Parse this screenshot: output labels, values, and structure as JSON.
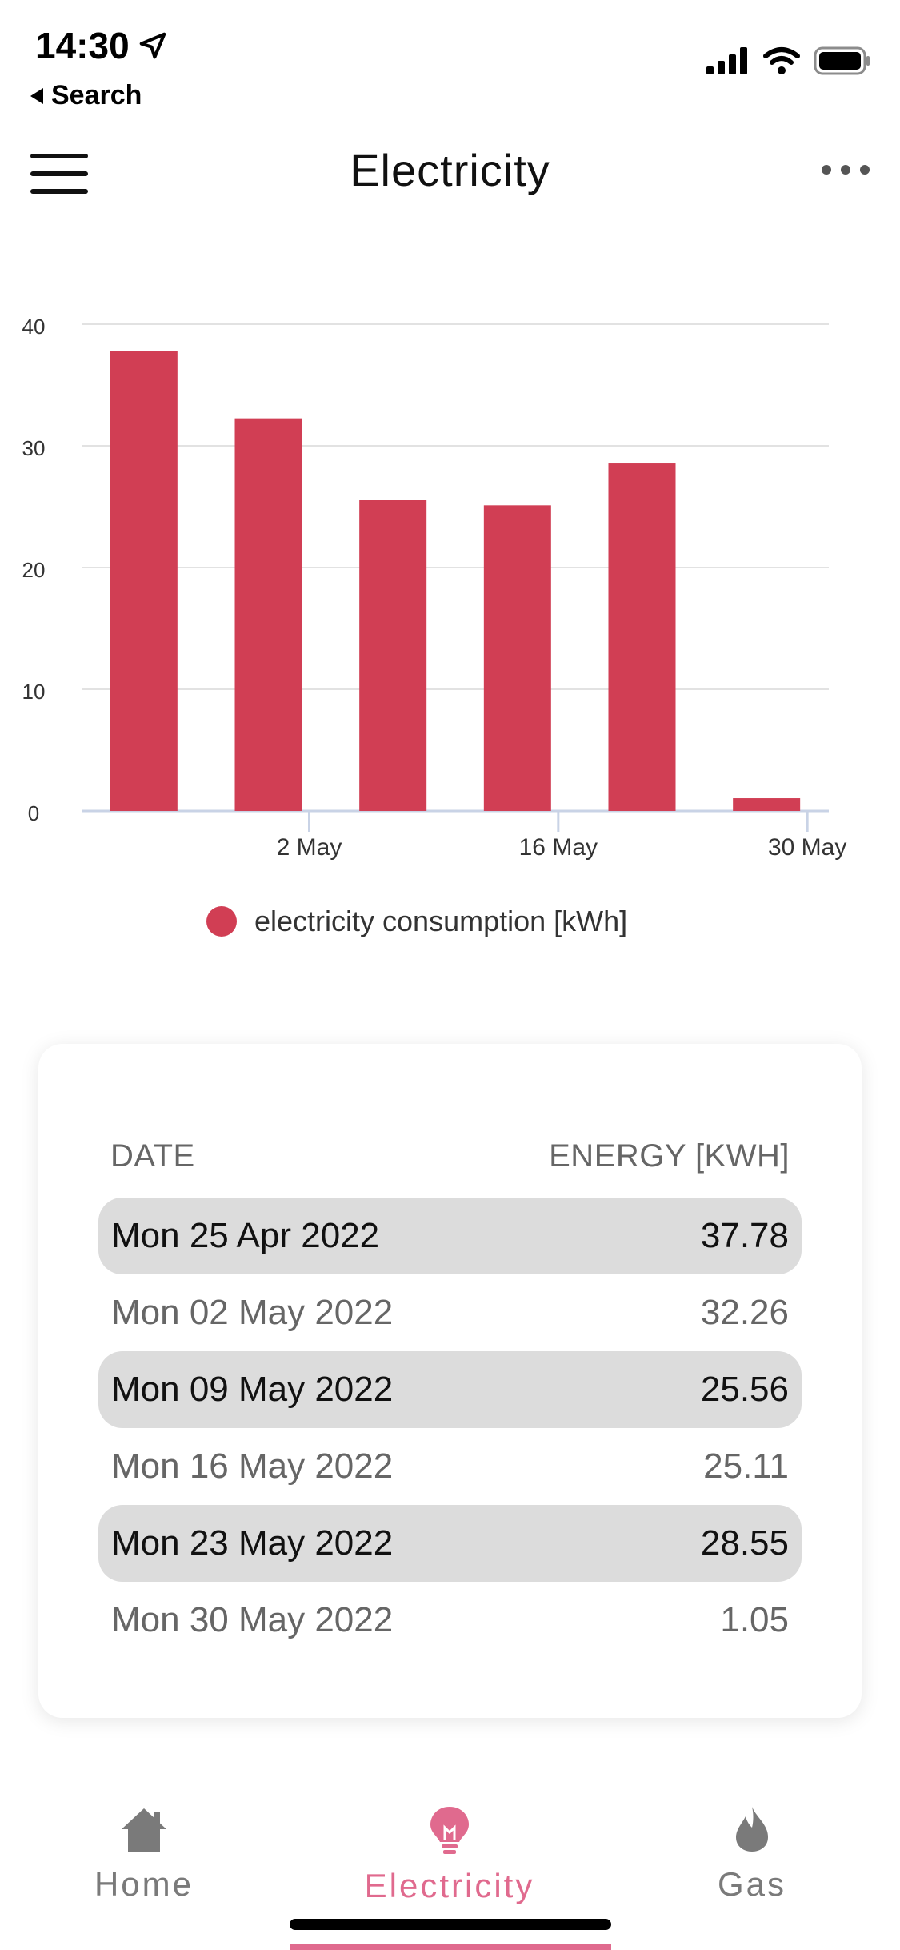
{
  "status_bar": {
    "time": "14:30",
    "back_label": "Search"
  },
  "header": {
    "title": "Electricity"
  },
  "chart_data": {
    "type": "bar",
    "categories": [
      "Mon 25 Apr 2022",
      "Mon 02 May 2022",
      "Mon 09 May 2022",
      "Mon 16 May 2022",
      "Mon 23 May 2022",
      "Mon 30 May 2022"
    ],
    "values": [
      37.78,
      32.26,
      25.56,
      25.11,
      28.55,
      1.05
    ],
    "series": [
      {
        "name": "electricity consumption [kWh]",
        "values": [
          37.78,
          32.26,
          25.56,
          25.11,
          28.55,
          1.05
        ]
      }
    ],
    "x_tick_labels": [
      "",
      "2 May",
      "",
      "16 May",
      "",
      "30 May"
    ],
    "y_ticks": [
      0,
      10,
      20,
      30,
      40
    ],
    "ylim": [
      0,
      40
    ],
    "grid": true,
    "legend_position": "bottom",
    "bar_color": "#d13e54"
  },
  "legend": {
    "label": "electricity consumption [kWh]"
  },
  "table": {
    "headers": {
      "date": "DATE",
      "energy": "ENERGY [KWH]"
    },
    "rows": [
      {
        "date": "Mon 25 Apr 2022",
        "energy": "37.78"
      },
      {
        "date": "Mon 02 May 2022",
        "energy": "32.26"
      },
      {
        "date": "Mon 09 May 2022",
        "energy": "25.56"
      },
      {
        "date": "Mon 16 May 2022",
        "energy": "25.11"
      },
      {
        "date": "Mon 23 May 2022",
        "energy": "28.55"
      },
      {
        "date": "Mon 30 May 2022",
        "energy": "1.05"
      }
    ]
  },
  "nav": {
    "home": "Home",
    "electricity": "Electricity",
    "gas": "Gas"
  },
  "colors": {
    "accent": "#e06a8e",
    "bar": "#d13e54"
  }
}
